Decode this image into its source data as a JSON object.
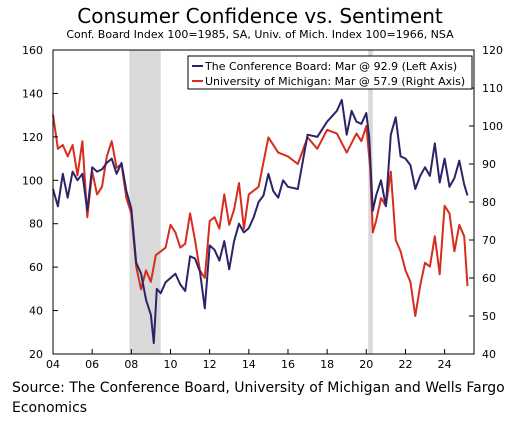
{
  "title": "Consumer Confidence vs. Sentiment",
  "subtitle": "Conf. Board Index 100=1985, SA, Univ. of Mich. Index 100=1966, NSA",
  "source": "Source: The Conference Board, University of Michigan and Wells Fargo Economics",
  "colors": {
    "conference_board": "#2b2468",
    "michigan": "#d62d1f",
    "recession": "#d9d9d9"
  },
  "chart_data": {
    "type": "line",
    "title": "Consumer Confidence vs. Sentiment",
    "subtitle": "Conf. Board Index 100=1985, SA, Univ. of Mich. Index 100=1966, NSA",
    "x_tick_labels": [
      "04",
      "06",
      "08",
      "10",
      "12",
      "14",
      "16",
      "18",
      "20",
      "22",
      "24"
    ],
    "xlim": [
      2004,
      2025.5
    ],
    "ylim_left": [
      20,
      160
    ],
    "yticks_left": [
      20,
      40,
      60,
      80,
      100,
      120,
      140,
      160
    ],
    "ylim_right": [
      40,
      120
    ],
    "yticks_right": [
      40,
      50,
      60,
      70,
      80,
      90,
      100,
      110,
      120
    ],
    "grid": false,
    "legend_position": "top-right",
    "recessions": [
      [
        2007.9,
        2009.5
      ],
      [
        2020.1,
        2020.33
      ]
    ],
    "series": [
      {
        "name": "The Conference Board: Mar @ 92.9 (Left Axis)",
        "axis": "left",
        "x": [
          2004.0,
          2004.25,
          2004.5,
          2004.75,
          2005.0,
          2005.25,
          2005.5,
          2005.75,
          2006.0,
          2006.25,
          2006.5,
          2006.75,
          2007.0,
          2007.25,
          2007.5,
          2007.75,
          2008.0,
          2008.25,
          2008.5,
          2008.75,
          2009.0,
          2009.15,
          2009.3,
          2009.5,
          2009.75,
          2010.0,
          2010.25,
          2010.5,
          2010.75,
          2011.0,
          2011.25,
          2011.5,
          2011.75,
          2012.0,
          2012.25,
          2012.5,
          2012.75,
          2013.0,
          2013.25,
          2013.5,
          2013.75,
          2014.0,
          2014.25,
          2014.5,
          2014.75,
          2015.0,
          2015.25,
          2015.5,
          2015.75,
          2016.0,
          2016.5,
          2017.0,
          2017.5,
          2018.0,
          2018.5,
          2018.75,
          2019.0,
          2019.25,
          2019.5,
          2019.75,
          2020.0,
          2020.15,
          2020.33,
          2020.5,
          2020.75,
          2021.0,
          2021.25,
          2021.5,
          2021.75,
          2022.0,
          2022.25,
          2022.5,
          2022.75,
          2023.0,
          2023.25,
          2023.5,
          2023.75,
          2024.0,
          2024.25,
          2024.5,
          2024.75,
          2025.0,
          2025.17
        ],
        "values": [
          96,
          88,
          103,
          92,
          104,
          100,
          103,
          86,
          106,
          104,
          105,
          108,
          110,
          103,
          108,
          95,
          87,
          62,
          57,
          45,
          38,
          25,
          50,
          48,
          53,
          55,
          57,
          52,
          49,
          65,
          64,
          58,
          41,
          70,
          68,
          63,
          72,
          59,
          72,
          80,
          76,
          78,
          83,
          90,
          93,
          103,
          95,
          92,
          100,
          97,
          96,
          121,
          120,
          127,
          132,
          137,
          121,
          132,
          127,
          126,
          131,
          120,
          86,
          93,
          100,
          88,
          121,
          129,
          111,
          110,
          107,
          96,
          102,
          106,
          102,
          117,
          99,
          110,
          97,
          101,
          109,
          98,
          93
        ]
      },
      {
        "name": "University of Michigan: Mar @ 57.9 (Right Axis)",
        "axis": "right",
        "x": [
          2004.0,
          2004.25,
          2004.5,
          2004.75,
          2005.0,
          2005.25,
          2005.5,
          2005.75,
          2006.0,
          2006.25,
          2006.5,
          2006.75,
          2007.0,
          2007.25,
          2007.5,
          2007.75,
          2008.0,
          2008.25,
          2008.5,
          2008.75,
          2009.0,
          2009.25,
          2009.5,
          2009.75,
          2010.0,
          2010.25,
          2010.5,
          2010.75,
          2011.0,
          2011.25,
          2011.5,
          2011.75,
          2012.0,
          2012.25,
          2012.5,
          2012.75,
          2013.0,
          2013.25,
          2013.5,
          2013.75,
          2014.0,
          2014.5,
          2015.0,
          2015.5,
          2016.0,
          2016.5,
          2017.0,
          2017.5,
          2018.0,
          2018.5,
          2019.0,
          2019.5,
          2019.75,
          2020.0,
          2020.2,
          2020.33,
          2020.5,
          2020.75,
          2021.0,
          2021.25,
          2021.5,
          2021.75,
          2022.0,
          2022.25,
          2022.5,
          2022.75,
          2023.0,
          2023.25,
          2023.5,
          2023.75,
          2024.0,
          2024.25,
          2024.5,
          2024.75,
          2025.0,
          2025.17
        ],
        "values": [
          103,
          94,
          95,
          92,
          95,
          87,
          96,
          76,
          88,
          82,
          84,
          92,
          96,
          89,
          90,
          81,
          77,
          63,
          57,
          62,
          59,
          66,
          67,
          68,
          74,
          72,
          68,
          69,
          77,
          70,
          62,
          60,
          75,
          76,
          73,
          82,
          74,
          78,
          85,
          73,
          82,
          84,
          97,
          93,
          92,
          90,
          97,
          94,
          99,
          98,
          93,
          98,
          96,
          100,
          89,
          72,
          75,
          81,
          79,
          88,
          70,
          67,
          62,
          59,
          50,
          58,
          64,
          63,
          71,
          61,
          79,
          77,
          67,
          74,
          71,
          57.9
        ]
      }
    ]
  }
}
